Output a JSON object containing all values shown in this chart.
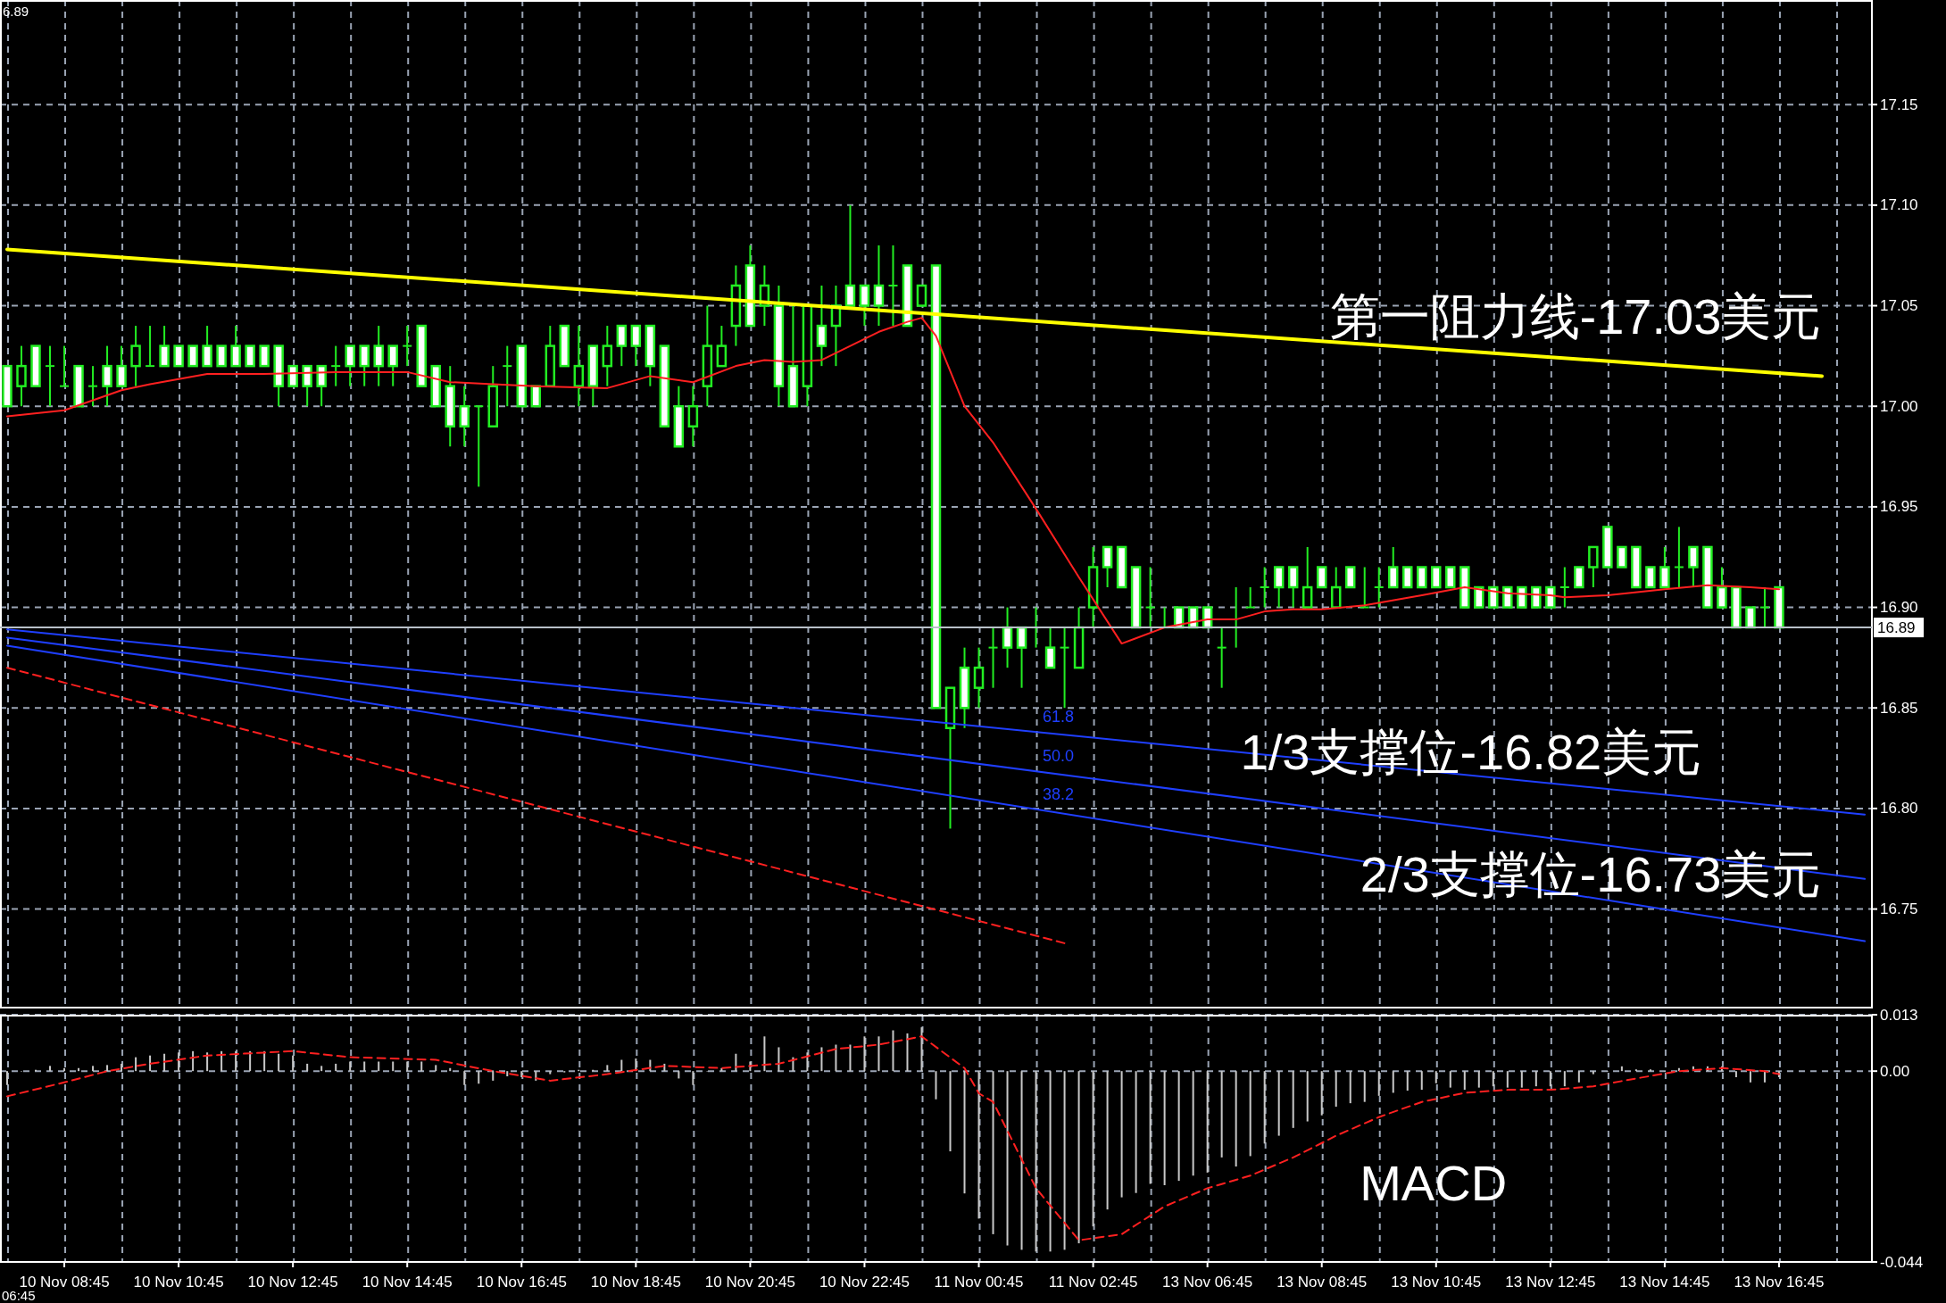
{
  "chart_data": [
    {
      "type": "candlestick",
      "color": "#22ee22",
      "grid": true,
      "tick_labels": "y",
      "categories": [
        null,
        null,
        null,
        null,
        null,
        null,
        null,
        null,
        null,
        null,
        null,
        null,
        null,
        null,
        null,
        null,
        null,
        null,
        null,
        null,
        null,
        null,
        null,
        null,
        null,
        null,
        null,
        null,
        null,
        null,
        null,
        null,
        null,
        null,
        null,
        null,
        null,
        null,
        null,
        null,
        null,
        null,
        null,
        null,
        null,
        null,
        null,
        null,
        null,
        null,
        null,
        null,
        null,
        null,
        null,
        null,
        null,
        null,
        null,
        null,
        null,
        null,
        null,
        null,
        null,
        null,
        null,
        null,
        null,
        null,
        null,
        null,
        null,
        null,
        null,
        null,
        null,
        null,
        null,
        null,
        null,
        null,
        null,
        null,
        null,
        null,
        null,
        null,
        null,
        null,
        null,
        null,
        null,
        null,
        null,
        null,
        null,
        null,
        null,
        null,
        null,
        null,
        null,
        null,
        null,
        null,
        null,
        null,
        null,
        null,
        null,
        null,
        null,
        null,
        null,
        null,
        null,
        null,
        null,
        null,
        null,
        null,
        null,
        null,
        null,
        null,
        null,
        null,
        null,
        null,
        null
      ],
      "ohlc": [
        [
          17.02,
          17.02,
          17.0,
          17.0
        ],
        [
          17.01,
          17.03,
          17.0,
          17.02
        ],
        [
          17.03,
          17.03,
          17.01,
          17.01
        ],
        [
          17.02,
          17.03,
          17.0,
          17.02
        ],
        [
          17.01,
          17.03,
          17.01,
          17.01
        ],
        [
          17.02,
          17.02,
          17.0,
          17.0
        ],
        [
          17.01,
          17.02,
          17.0,
          17.01
        ],
        [
          17.02,
          17.03,
          17.0,
          17.01
        ],
        [
          17.02,
          17.03,
          17.01,
          17.01
        ],
        [
          17.02,
          17.04,
          17.01,
          17.03
        ],
        [
          17.02,
          17.04,
          17.02,
          17.02
        ],
        [
          17.03,
          17.04,
          17.02,
          17.02
        ],
        [
          17.03,
          17.03,
          17.02,
          17.02
        ],
        [
          17.03,
          17.03,
          17.02,
          17.02
        ],
        [
          17.03,
          17.04,
          17.02,
          17.02
        ],
        [
          17.03,
          17.03,
          17.02,
          17.02
        ],
        [
          17.03,
          17.04,
          17.02,
          17.02
        ],
        [
          17.03,
          17.03,
          17.02,
          17.02
        ],
        [
          17.03,
          17.03,
          17.02,
          17.02
        ],
        [
          17.03,
          17.03,
          17.0,
          17.01
        ],
        [
          17.02,
          17.02,
          17.01,
          17.01
        ],
        [
          17.02,
          17.02,
          17.0,
          17.01
        ],
        [
          17.02,
          17.02,
          17.0,
          17.01
        ],
        [
          17.02,
          17.03,
          17.01,
          17.02
        ],
        [
          17.03,
          17.03,
          17.01,
          17.02
        ],
        [
          17.03,
          17.03,
          17.01,
          17.02
        ],
        [
          17.03,
          17.04,
          17.01,
          17.02
        ],
        [
          17.03,
          17.03,
          17.01,
          17.02
        ],
        [
          17.03,
          17.04,
          17.02,
          17.03
        ],
        [
          17.04,
          17.04,
          17.01,
          17.01
        ],
        [
          17.02,
          17.02,
          17.0,
          17.0
        ],
        [
          17.01,
          17.02,
          16.98,
          16.99
        ],
        [
          17.0,
          17.01,
          16.98,
          16.99
        ],
        [
          17.0,
          17.0,
          16.96,
          17.0
        ],
        [
          16.99,
          17.02,
          16.99,
          17.01
        ],
        [
          17.02,
          17.03,
          17.0,
          17.02
        ],
        [
          17.03,
          17.03,
          17.0,
          17.0
        ],
        [
          17.01,
          17.01,
          17.0,
          17.0
        ],
        [
          17.01,
          17.04,
          17.01,
          17.03
        ],
        [
          17.04,
          17.04,
          17.02,
          17.02
        ],
        [
          17.01,
          17.04,
          17.0,
          17.02
        ],
        [
          17.03,
          17.03,
          17.0,
          17.01
        ],
        [
          17.02,
          17.04,
          17.01,
          17.03
        ],
        [
          17.04,
          17.04,
          17.02,
          17.03
        ],
        [
          17.04,
          17.04,
          17.02,
          17.03
        ],
        [
          17.04,
          17.04,
          17.01,
          17.02
        ],
        [
          17.03,
          17.03,
          16.99,
          16.99
        ],
        [
          17.0,
          17.01,
          16.98,
          16.98
        ],
        [
          16.99,
          17.01,
          16.98,
          17.0
        ],
        [
          17.01,
          17.05,
          17.0,
          17.03
        ],
        [
          17.02,
          17.04,
          17.02,
          17.03
        ],
        [
          17.04,
          17.07,
          17.03,
          17.06
        ],
        [
          17.07,
          17.08,
          17.04,
          17.04
        ],
        [
          17.05,
          17.07,
          17.04,
          17.06
        ],
        [
          17.05,
          17.06,
          17.0,
          17.01
        ],
        [
          17.02,
          17.05,
          17.0,
          17.0
        ],
        [
          17.01,
          17.05,
          17.0,
          17.05
        ],
        [
          17.04,
          17.06,
          17.02,
          17.03
        ],
        [
          17.04,
          17.06,
          17.02,
          17.05
        ],
        [
          17.06,
          17.1,
          17.05,
          17.05
        ],
        [
          17.06,
          17.06,
          17.04,
          17.05
        ],
        [
          17.06,
          17.08,
          17.04,
          17.05
        ],
        [
          17.06,
          17.08,
          17.04,
          17.06
        ],
        [
          17.07,
          17.07,
          17.04,
          17.04
        ],
        [
          17.05,
          17.06,
          17.05,
          17.06
        ],
        [
          17.07,
          17.07,
          16.85,
          16.85
        ],
        [
          16.84,
          16.86,
          16.79,
          16.86
        ],
        [
          16.87,
          16.88,
          16.84,
          16.85
        ],
        [
          16.86,
          16.88,
          16.85,
          16.87
        ],
        [
          16.88,
          16.89,
          16.86,
          16.88
        ],
        [
          16.89,
          16.9,
          16.87,
          16.88
        ],
        [
          16.89,
          16.89,
          16.86,
          16.88
        ],
        [
          16.89,
          16.9,
          16.88,
          16.89
        ],
        [
          16.88,
          16.89,
          16.87,
          16.87
        ],
        [
          16.88,
          16.89,
          16.85,
          16.88
        ],
        [
          16.87,
          16.9,
          16.87,
          16.89
        ],
        [
          16.9,
          16.93,
          16.89,
          16.92
        ],
        [
          16.93,
          16.93,
          16.91,
          16.92
        ],
        [
          16.93,
          16.93,
          16.91,
          16.91
        ],
        [
          16.92,
          16.92,
          16.89,
          16.89
        ],
        [
          16.9,
          16.92,
          16.89,
          16.9
        ],
        [
          16.89,
          16.9,
          16.89,
          16.89
        ],
        [
          16.9,
          16.9,
          16.89,
          16.89
        ],
        [
          16.9,
          16.9,
          16.89,
          16.89
        ],
        [
          16.9,
          16.9,
          16.89,
          16.89
        ],
        [
          16.88,
          16.89,
          16.86,
          16.88
        ],
        [
          16.89,
          16.91,
          16.88,
          16.89
        ],
        [
          16.9,
          16.91,
          16.9,
          16.9
        ],
        [
          16.91,
          16.92,
          16.9,
          16.91
        ],
        [
          16.92,
          16.92,
          16.9,
          16.91
        ],
        [
          16.92,
          16.92,
          16.9,
          16.91
        ],
        [
          16.9,
          16.93,
          16.9,
          16.91
        ],
        [
          16.92,
          16.92,
          16.91,
          16.91
        ],
        [
          16.9,
          16.92,
          16.9,
          16.91
        ],
        [
          16.92,
          16.92,
          16.91,
          16.91
        ],
        [
          16.9,
          16.92,
          16.9,
          16.9
        ],
        [
          16.91,
          16.92,
          16.9,
          16.91
        ],
        [
          16.92,
          16.93,
          16.91,
          16.91
        ],
        [
          16.92,
          16.92,
          16.91,
          16.91
        ],
        [
          16.92,
          16.92,
          16.91,
          16.91
        ],
        [
          16.92,
          16.92,
          16.91,
          16.91
        ],
        [
          16.92,
          16.92,
          16.91,
          16.91
        ],
        [
          16.92,
          16.92,
          16.9,
          16.9
        ],
        [
          16.91,
          16.91,
          16.9,
          16.9
        ],
        [
          16.91,
          16.91,
          16.9,
          16.9
        ],
        [
          16.91,
          16.91,
          16.9,
          16.9
        ],
        [
          16.91,
          16.91,
          16.9,
          16.9
        ],
        [
          16.91,
          16.91,
          16.9,
          16.9
        ],
        [
          16.91,
          16.91,
          16.9,
          16.9
        ],
        [
          16.91,
          16.92,
          16.9,
          16.91
        ],
        [
          16.92,
          16.92,
          16.91,
          16.91
        ],
        [
          16.92,
          16.93,
          16.91,
          16.93
        ],
        [
          16.94,
          16.94,
          16.92,
          16.92
        ],
        [
          16.93,
          16.93,
          16.92,
          16.92
        ],
        [
          16.93,
          16.93,
          16.91,
          16.91
        ],
        [
          16.92,
          16.92,
          16.91,
          16.91
        ],
        [
          16.92,
          16.93,
          16.91,
          16.91
        ],
        [
          16.92,
          16.94,
          16.91,
          16.92
        ],
        [
          16.93,
          16.93,
          16.91,
          16.92
        ],
        [
          16.93,
          16.93,
          16.9,
          16.9
        ],
        [
          16.91,
          16.92,
          16.9,
          16.9
        ],
        [
          16.91,
          16.91,
          16.89,
          16.89
        ],
        [
          16.9,
          16.9,
          16.89,
          16.89
        ],
        [
          16.9,
          16.91,
          16.89,
          16.9
        ],
        [
          16.91,
          16.91,
          16.89,
          16.89
        ],
        null,
        null,
        null,
        null,
        null,
        null
      ],
      "series": [
        {
          "type": "line",
          "color": "#ff2020",
          "values": [
            16.995,
            null,
            null,
            null,
            16.998,
            null,
            null,
            null,
            17.008,
            null,
            17.011,
            null,
            null,
            null,
            17.016,
            null,
            null,
            null,
            17.016,
            null,
            null,
            null,
            null,
            17.017,
            null,
            null,
            null,
            null,
            17.017,
            null,
            null,
            17.012,
            null,
            null,
            17.011,
            null,
            null,
            17.01,
            null,
            null,
            null,
            null,
            17.009,
            null,
            17.013,
            17.015,
            null,
            null,
            17.012,
            null,
            null,
            17.02,
            null,
            17.023,
            null,
            17.022,
            null,
            17.023,
            null,
            17.03,
            null,
            17.037,
            null,
            17.042,
            17.044,
            17.035,
            null,
            17.0,
            null,
            16.982,
            null,
            null,
            16.949,
            null,
            null,
            16.915,
            null,
            null,
            16.882,
            null,
            null,
            16.89,
            null,
            null,
            16.894,
            null,
            16.894,
            null,
            16.898,
            null,
            16.899,
            null,
            16.899,
            null,
            null,
            16.901,
            null,
            null,
            null,
            16.906,
            null,
            null,
            16.91,
            null,
            null,
            16.907,
            null,
            null,
            16.906,
            16.905,
            null,
            null,
            16.906,
            null,
            null,
            null,
            16.909,
            null,
            null,
            16.911,
            null,
            null,
            16.91,
            null,
            16.909,
            null,
            null,
            null,
            null,
            null,
            null
          ]
        },
        {
          "type": "line",
          "color": "#ffff00",
          "values": [
            17.078,
            null,
            null,
            null,
            null,
            null,
            null,
            null,
            null,
            null,
            null,
            null,
            null,
            null,
            null,
            null,
            null,
            null,
            null,
            null,
            null,
            null,
            null,
            null,
            null,
            null,
            null,
            null,
            null,
            null,
            null,
            null,
            null,
            null,
            null,
            null,
            null,
            null,
            null,
            null,
            null,
            null,
            null,
            null,
            null,
            null,
            null,
            null,
            null,
            null,
            null,
            null,
            null,
            null,
            null,
            null,
            null,
            null,
            null,
            null,
            null,
            null,
            null,
            null,
            null,
            null,
            null,
            null,
            null,
            null,
            null,
            null,
            null,
            null,
            null,
            null,
            null,
            null,
            null,
            null,
            null,
            null,
            null,
            null,
            null,
            null,
            null,
            null,
            null,
            null,
            null,
            null,
            null,
            null,
            null,
            null,
            null,
            null,
            null,
            null,
            null,
            null,
            null,
            null,
            null,
            null,
            null,
            null,
            null,
            null,
            null,
            null,
            null,
            null,
            null,
            null,
            null,
            null,
            null,
            null,
            null,
            null,
            null,
            null,
            null,
            null,
            null,
            17.015,
            null,
            null,
            null
          ]
        },
        {
          "type": "line",
          "name": "61.8",
          "color": "#1f3fff",
          "values": [
            16.889,
            null,
            null,
            null,
            null,
            null,
            null,
            null,
            null,
            null,
            null,
            null,
            null,
            null,
            null,
            null,
            null,
            null,
            null,
            null,
            null,
            null,
            null,
            null,
            null,
            null,
            null,
            null,
            null,
            null,
            null,
            null,
            null,
            null,
            null,
            null,
            null,
            null,
            null,
            null,
            null,
            null,
            null,
            null,
            null,
            null,
            null,
            null,
            null,
            null,
            null,
            null,
            null,
            null,
            null,
            null,
            null,
            null,
            null,
            null,
            null,
            null,
            null,
            null,
            null,
            null,
            null,
            null,
            null,
            null,
            null,
            null,
            null,
            null,
            null,
            null,
            null,
            null,
            null,
            null,
            null,
            null,
            null,
            null,
            null,
            null,
            null,
            null,
            null,
            null,
            null,
            null,
            null,
            null,
            null,
            null,
            null,
            null,
            null,
            null,
            null,
            null,
            null,
            null,
            null,
            null,
            null,
            null,
            null,
            null,
            null,
            null,
            null,
            null,
            null,
            null,
            null,
            null,
            null,
            null,
            null,
            null,
            null,
            null,
            null,
            null,
            null,
            null,
            null,
            null,
            16.797
          ]
        },
        {
          "type": "line",
          "name": "50.0",
          "color": "#1f3fff",
          "values": [
            16.885,
            null,
            null,
            null,
            null,
            null,
            null,
            null,
            null,
            null,
            null,
            null,
            null,
            null,
            null,
            null,
            null,
            null,
            null,
            null,
            null,
            null,
            null,
            null,
            null,
            null,
            null,
            null,
            null,
            null,
            null,
            null,
            null,
            null,
            null,
            null,
            null,
            null,
            null,
            null,
            null,
            null,
            null,
            null,
            null,
            null,
            null,
            null,
            null,
            null,
            null,
            null,
            null,
            null,
            null,
            null,
            null,
            null,
            null,
            null,
            null,
            null,
            null,
            null,
            null,
            null,
            null,
            null,
            null,
            null,
            null,
            null,
            null,
            null,
            null,
            null,
            null,
            null,
            null,
            null,
            null,
            null,
            null,
            null,
            null,
            null,
            null,
            null,
            null,
            null,
            null,
            null,
            null,
            null,
            null,
            null,
            null,
            null,
            null,
            null,
            null,
            null,
            null,
            null,
            null,
            null,
            null,
            null,
            null,
            null,
            null,
            null,
            null,
            null,
            null,
            null,
            null,
            null,
            null,
            null,
            null,
            null,
            null,
            null,
            null,
            null,
            null,
            null,
            null,
            null,
            16.765
          ]
        },
        {
          "type": "line",
          "name": "38.2",
          "color": "#1f3fff",
          "values": [
            16.881,
            null,
            null,
            null,
            null,
            null,
            null,
            null,
            null,
            null,
            null,
            null,
            null,
            null,
            null,
            null,
            null,
            null,
            null,
            null,
            null,
            null,
            null,
            null,
            null,
            null,
            null,
            null,
            null,
            null,
            null,
            null,
            null,
            null,
            null,
            null,
            null,
            null,
            null,
            null,
            null,
            null,
            null,
            null,
            null,
            null,
            null,
            null,
            null,
            null,
            null,
            null,
            null,
            null,
            null,
            null,
            null,
            null,
            null,
            null,
            null,
            null,
            null,
            null,
            null,
            null,
            null,
            null,
            null,
            null,
            null,
            null,
            null,
            null,
            null,
            null,
            null,
            null,
            null,
            null,
            null,
            null,
            null,
            null,
            null,
            null,
            null,
            null,
            null,
            null,
            null,
            null,
            null,
            null,
            null,
            null,
            null,
            null,
            null,
            null,
            null,
            null,
            null,
            null,
            null,
            null,
            null,
            null,
            null,
            null,
            null,
            null,
            null,
            null,
            null,
            null,
            null,
            null,
            null,
            null,
            null,
            null,
            null,
            null,
            null,
            null,
            null,
            null,
            null,
            null,
            16.734
          ]
        },
        {
          "type": "line",
          "color": "#ff2020",
          "line_style": "dashed",
          "values": [
            16.87,
            null,
            null,
            null,
            null,
            null,
            null,
            null,
            null,
            null,
            null,
            null,
            null,
            null,
            null,
            null,
            null,
            null,
            null,
            null,
            null,
            null,
            null,
            null,
            null,
            null,
            null,
            null,
            null,
            null,
            null,
            null,
            null,
            null,
            null,
            null,
            null,
            null,
            null,
            null,
            null,
            null,
            null,
            null,
            null,
            null,
            null,
            null,
            null,
            null,
            null,
            null,
            null,
            null,
            null,
            null,
            null,
            null,
            null,
            null,
            null,
            null,
            null,
            null,
            null,
            null,
            null,
            null,
            null,
            null,
            null,
            null,
            null,
            null,
            16.733,
            null,
            null,
            null,
            null,
            null,
            null,
            null,
            null,
            null,
            null,
            null,
            null,
            null,
            null,
            null,
            null,
            null,
            null,
            null,
            null,
            null,
            null,
            null,
            null,
            null,
            null,
            null,
            null,
            null,
            null,
            null,
            null,
            null,
            null,
            null,
            null,
            null,
            null,
            null,
            null,
            null,
            null,
            null,
            null,
            null,
            null,
            null,
            null,
            null,
            null,
            null,
            null,
            null,
            null,
            null,
            null
          ]
        }
      ],
      "ylim": [
        16.701,
        17.202
      ],
      "yticks": [
        16.75,
        {
          "value": 16.8,
          "label": "16.80"
        },
        16.85,
        {
          "value": 16.9,
          "label": "16.90"
        },
        16.95,
        {
          "value": 17,
          "label": "17.00"
        },
        17.05,
        {
          "value": 17.1,
          "label": "17.10"
        },
        17.15
      ],
      "ref_lines": [
        {
          "axis": "y",
          "value": 16.89,
          "label": "16.89",
          "color": "#b8c0c8"
        }
      ],
      "annotations": [
        "第一阻力线-17.03美元",
        "1/3支撑位-16.82美元",
        "2/3支撑位-16.73美元",
        "6.89"
      ]
    },
    {
      "type": "bar",
      "grid": true,
      "categories": [
        null,
        null,
        null,
        null,
        "10 Nov 08:45",
        null,
        null,
        null,
        null,
        null,
        null,
        null,
        "10 Nov 10:45",
        null,
        null,
        null,
        null,
        null,
        null,
        null,
        "10 Nov 12:45",
        null,
        null,
        null,
        null,
        null,
        null,
        null,
        "10 Nov 14:45",
        null,
        null,
        null,
        null,
        null,
        null,
        null,
        "10 Nov 16:45",
        null,
        null,
        null,
        null,
        null,
        null,
        null,
        "10 Nov 18:45",
        null,
        null,
        null,
        null,
        null,
        null,
        null,
        "10 Nov 20:45",
        null,
        null,
        null,
        null,
        null,
        null,
        null,
        "10 Nov 22:45",
        null,
        null,
        null,
        null,
        null,
        null,
        null,
        "11 Nov 00:45",
        null,
        null,
        null,
        null,
        null,
        null,
        null,
        "11 Nov 02:45",
        null,
        null,
        null,
        null,
        null,
        null,
        null,
        "13 Nov 06:45",
        null,
        null,
        null,
        null,
        null,
        null,
        null,
        "13 Nov 08:45",
        null,
        null,
        null,
        null,
        null,
        null,
        null,
        "13 Nov 10:45",
        null,
        null,
        null,
        null,
        null,
        null,
        null,
        "13 Nov 12:45",
        null,
        null,
        null,
        null,
        null,
        null,
        null,
        "13 Nov 14:45",
        null,
        null,
        null,
        null,
        null,
        null,
        null,
        "13 Nov 16:45",
        null,
        null,
        null,
        null,
        null,
        null
      ],
      "series": [
        {
          "type": "bar",
          "color": "#c8c8c8",
          "values": [
            -0.0032,
            0,
            0.0003,
            0.0012,
            0.0007,
            0.0007,
            0.0012,
            0.0014,
            0.0017,
            0.0032,
            0.0036,
            0.004,
            0.0043,
            0.0046,
            0.0043,
            0.0046,
            0.0046,
            0.0046,
            0.0046,
            0.004,
            0.0036,
            0.0017,
            0.0012,
            0.0017,
            0.0022,
            0.0022,
            0.0022,
            0.0022,
            0.0022,
            0.0022,
            0.0014,
            0.0007,
            -0.0032,
            -0.0029,
            -0.0022,
            -0.0012,
            -0.0014,
            -0.0022,
            -0.0007,
            -0.0003,
            0.0003,
            0.0003,
            0.0014,
            0.0026,
            0.0029,
            0.0026,
            0.0017,
            -0.0017,
            -0.0032,
            0,
            0.0007,
            0.004,
            0.0022,
            0.008,
            0.0055,
            0.0032,
            0.0043,
            0.0055,
            0.0061,
            0.0061,
            0.008,
            0.008,
            0.0094,
            0.0087,
            0.0101,
            -0.0065,
            -0.0185,
            -0.0282,
            -0.034,
            -0.0376,
            -0.0402,
            -0.0412,
            -0.0416,
            -0.0416,
            -0.0412,
            -0.0397,
            -0.0358,
            -0.0319,
            -0.0291,
            -0.0281,
            -0.026,
            -0.0263,
            -0.0253,
            -0.0241,
            -0.0234,
            -0.0199,
            -0.022,
            -0.0196,
            -0.0167,
            -0.0149,
            -0.0131,
            -0.0116,
            -0.0102,
            -0.0082,
            -0.0074,
            -0.0071,
            -0.0057,
            -0.005,
            -0.0045,
            -0.0043,
            -0.0028,
            -0.0038,
            -0.0043,
            -0.0038,
            -0.0035,
            -0.0038,
            -0.0038,
            -0.0035,
            -0.0035,
            -0.0035,
            -0.0026,
            -0.0007,
            0,
            0.0011,
            0.0004,
            0.0004,
            0,
            0.0007,
            0.0011,
            0.0011,
            0.0011,
            -0.0014,
            -0.0026,
            -0.0026,
            -0.0014,
            null,
            null,
            null,
            null,
            null,
            null
          ]
        },
        {
          "type": "line",
          "color": "#ff2020",
          "line_style": "dashed",
          "values": [
            -0.0058,
            null,
            null,
            null,
            -0.0026,
            null,
            null,
            0,
            null,
            null,
            0.0017,
            null,
            null,
            null,
            0.0036,
            null,
            null,
            null,
            null,
            null,
            0.0046,
            null,
            null,
            null,
            0.0032,
            null,
            null,
            null,
            null,
            null,
            0.0026,
            null,
            null,
            null,
            0,
            null,
            null,
            null,
            -0.0022,
            null,
            null,
            null,
            -0.0007,
            null,
            null,
            null,
            0.0012,
            null,
            null,
            null,
            0.0007,
            null,
            null,
            null,
            0.0017,
            null,
            null,
            null,
            0.0051,
            null,
            null,
            0.0061,
            null,
            null,
            0.008,
            null,
            null,
            0.0007,
            -0.0051,
            -0.0071,
            null,
            null,
            -0.027,
            null,
            null,
            -0.039,
            null,
            null,
            -0.0376,
            null,
            null,
            -0.0312,
            null,
            null,
            -0.027,
            null,
            null,
            -0.0241,
            null,
            null,
            -0.0199,
            null,
            null,
            -0.0149,
            null,
            null,
            -0.0106,
            null,
            null,
            -0.0071,
            null,
            null,
            -0.005,
            null,
            null,
            -0.0043,
            null,
            null,
            -0.0043,
            null,
            null,
            -0.0035,
            null,
            null,
            -0.0017,
            null,
            null,
            0,
            null,
            null,
            0.0007,
            null,
            null,
            0,
            -0.0007,
            null,
            null,
            null,
            null,
            null,
            null
          ]
        }
      ],
      "ylim": [
        -0.044,
        0.013
      ],
      "yticks": [
        0.013,
        {
          "value": 0,
          "label": "0.00"
        },
        -0.044
      ],
      "annotations": [
        "MACD",
        "06:45"
      ]
    }
  ]
}
